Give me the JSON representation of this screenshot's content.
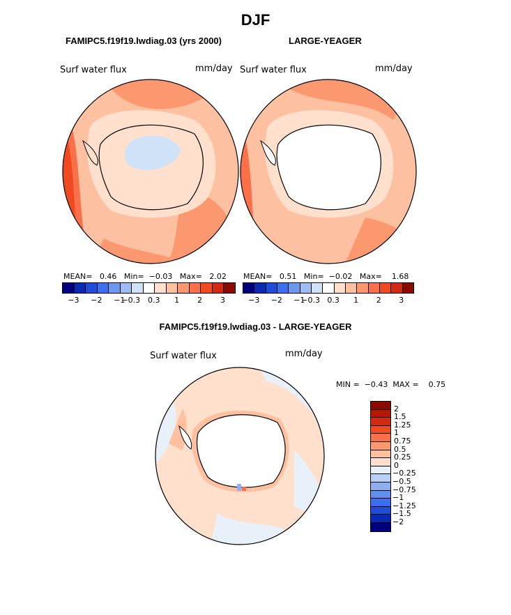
{
  "season": "DJF",
  "left_case": "FAMIPC5.f19f19.lwdiag.03 (yrs 2000)",
  "right_case": "LARGE-YEAGER",
  "diff_case": "FAMIPC5.f19f19.lwdiag.03 - LARGE-YEAGER",
  "field": "Surf water flux",
  "units": "mm/day",
  "panels": {
    "left": {
      "mean_label": "MEAN=",
      "mean": "0.46",
      "min_label": "Min=",
      "min": "−0.03",
      "max_label": "Max=",
      "max": "2.02"
    },
    "right": {
      "mean_label": "MEAN=",
      "mean": "0.51",
      "min_label": "Min=",
      "min": "−0.02",
      "max_label": "Max=",
      "max": "1.68"
    },
    "diff": {
      "min_label": "MIN =",
      "min": "−0.43",
      "max_label": "MAX =",
      "max": "0.75"
    }
  },
  "colorbar_top": {
    "ticks": [
      "−3",
      "−2",
      "−1",
      "−0.3",
      "0.3",
      "1",
      "2",
      "3"
    ],
    "colors": [
      "#00007f",
      "#0a2ab4",
      "#1e4ed8",
      "#3c6ef0",
      "#6e98f0",
      "#9ebcf2",
      "#d0e2f8",
      "#ffffff",
      "#fee0cc",
      "#fdc0a0",
      "#fc9870",
      "#fa7048",
      "#f04a20",
      "#d02a10",
      "#8b0a00"
    ]
  },
  "colorbar_diff": {
    "labels": [
      "2",
      "1.5",
      "1.25",
      "1",
      "0.75",
      "0.5",
      "0.25",
      "0",
      "−0.25",
      "−0.5",
      "−0.75",
      "−1",
      "−1.25",
      "−1.5",
      "−2"
    ],
    "colors": [
      "#8b0a00",
      "#b41800",
      "#d02a10",
      "#f04a20",
      "#fa7048",
      "#fc9870",
      "#fdc0a0",
      "#fee0cc",
      "#e8f0fa",
      "#b8d0f4",
      "#8cb0f0",
      "#6090ea",
      "#3c6ef0",
      "#1e4ed8",
      "#0a2ab4",
      "#00007f"
    ]
  }
}
